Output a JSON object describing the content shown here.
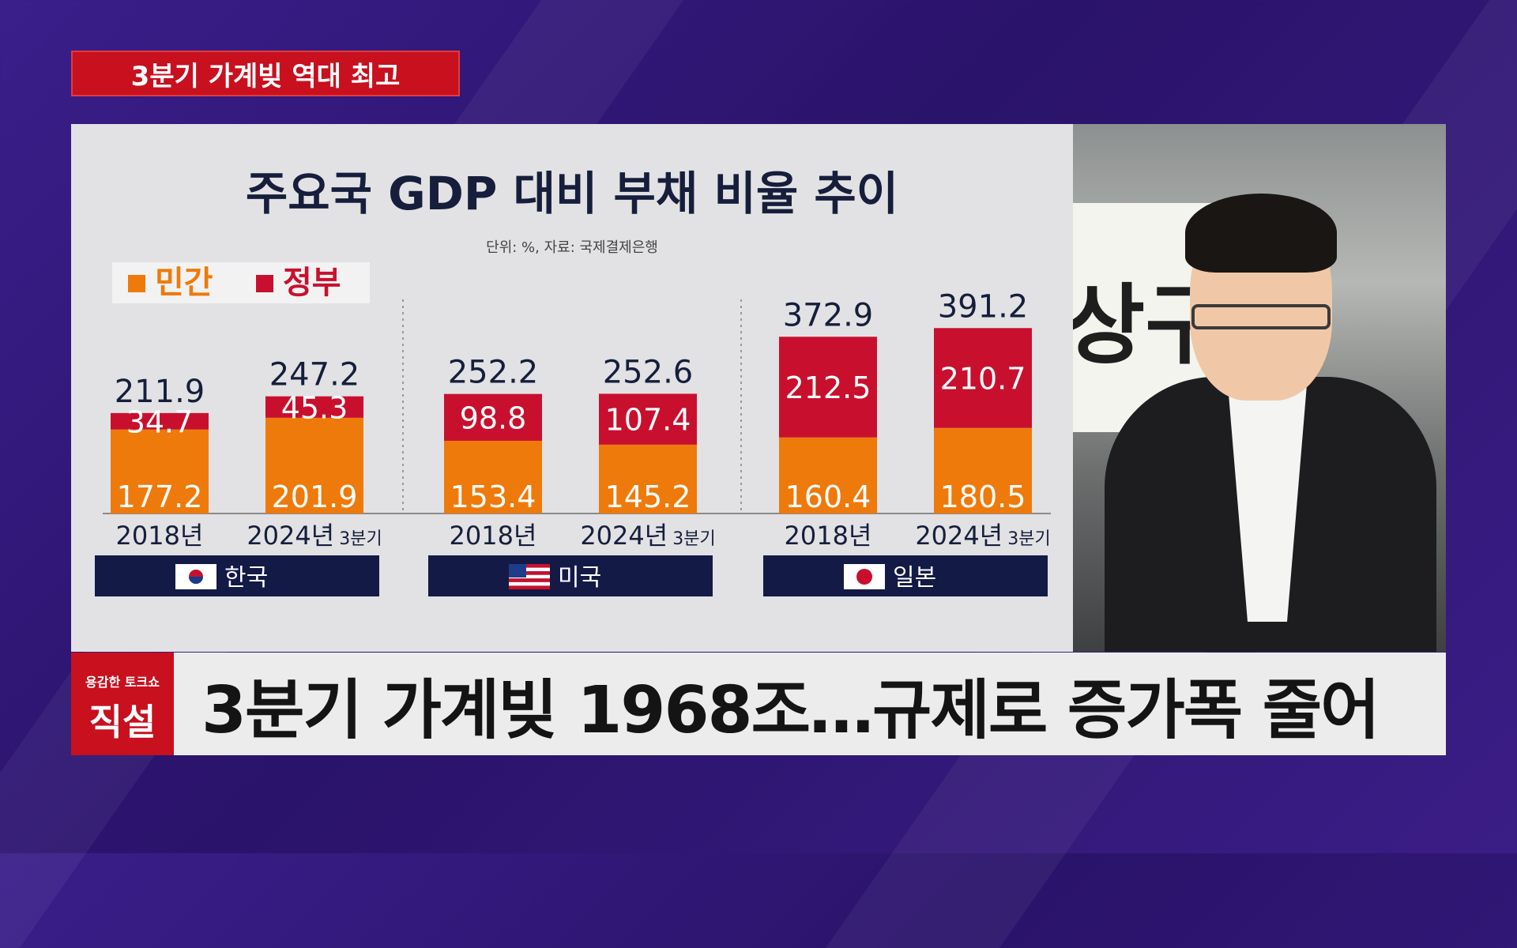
{
  "top_banner": "3분기 가계빚 역대 최고",
  "chart_data": {
    "type": "bar",
    "title": "주요국 GDP 대비 부채 비율 추이",
    "subtitle": "단위: %, 자료: 국제결제은행",
    "legend": [
      "민간",
      "정부"
    ],
    "colors": {
      "민간": "#ee7a0b",
      "정부": "#c8102e"
    },
    "groups": [
      {
        "country": "한국",
        "flag": "korea-flag-icon",
        "bars": [
          {
            "label": "2018년",
            "sub": "",
            "private": 177.2,
            "government": 34.7,
            "total": 211.9
          },
          {
            "label": "2024년",
            "sub": "3분기",
            "private": 201.9,
            "government": 45.3,
            "total": 247.2
          }
        ]
      },
      {
        "country": "미국",
        "flag": "usa-flag-icon",
        "bars": [
          {
            "label": "2018년",
            "sub": "",
            "private": 153.4,
            "government": 98.8,
            "total": 252.2
          },
          {
            "label": "2024년",
            "sub": "3분기",
            "private": 145.2,
            "government": 107.4,
            "total": 252.6
          }
        ]
      },
      {
        "country": "일본",
        "flag": "japan-flag-icon",
        "bars": [
          {
            "label": "2018년",
            "sub": "",
            "private": 160.4,
            "government": 212.5,
            "total": 372.9
          },
          {
            "label": "2024년",
            "sub": "3분기",
            "private": 180.5,
            "government": 210.7,
            "total": 391.2
          }
        ]
      }
    ]
  },
  "lower_third": {
    "logo_small": "용감한 토크쇼",
    "logo_big": "직설",
    "headline": "3분기 가계빚 1968조…규제로 증가폭 줄어"
  },
  "video": {
    "sign_text": "상구"
  }
}
